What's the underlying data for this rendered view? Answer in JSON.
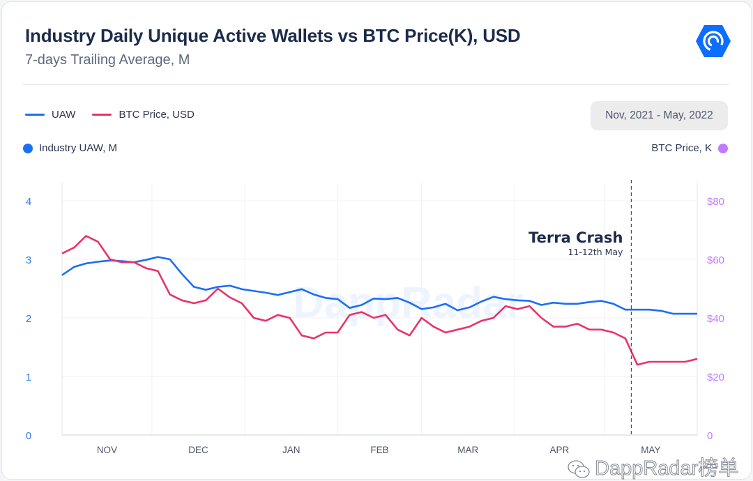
{
  "header": {
    "title": "Industry Daily Unique Active Wallets vs BTC Price(K), USD",
    "subtitle": "7-days Trailing Average, M",
    "logo_icon": "dappradar-hexagon-logo"
  },
  "legend": {
    "items": [
      {
        "label": "UAW",
        "color": "#1a6ff5"
      },
      {
        "label": "BTC Price, USD",
        "color": "#e8336b"
      }
    ]
  },
  "date_range": "Nov, 2021 - May, 2022",
  "axis_titles": {
    "left": "Industry UAW, M",
    "left_color": "#1a6ff5",
    "right": "BTC Price, K",
    "right_color": "#c27bff"
  },
  "watermarks": {
    "chart_background": "DappRadar",
    "footer": "DappRadar榜单"
  },
  "chart_data": {
    "type": "line",
    "title": "Industry Daily Unique Active Wallets vs BTC Price(K), USD",
    "subtitle": "7-days Trailing Average, M",
    "x_tick_labels": [
      "NOV",
      "DEC",
      "JAN",
      "FEB",
      "MAR",
      "APR",
      "MAY"
    ],
    "xlim": [
      "2021-11-01",
      "2022-06-01"
    ],
    "y_left": {
      "label": "Industry UAW, M",
      "ticks": [
        "0",
        "1",
        "2",
        "3",
        "4"
      ],
      "lim": [
        0,
        4
      ]
    },
    "y_right": {
      "label": "BTC Price, K",
      "ticks": [
        "0",
        "$20",
        "$40",
        "$60",
        "$80"
      ],
      "lim": [
        0,
        80
      ]
    },
    "grid": true,
    "legend_position": "top-left",
    "annotation": {
      "date": "2022-05-10",
      "title": "Terra Crash",
      "subtitle": "11-12th May",
      "style": "dashed vertical line"
    },
    "x": [
      "2021-11-01",
      "2021-11-05",
      "2021-11-09",
      "2021-11-13",
      "2021-11-17",
      "2021-11-21",
      "2021-11-25",
      "2021-11-29",
      "2021-12-03",
      "2021-12-07",
      "2021-12-11",
      "2021-12-15",
      "2021-12-19",
      "2021-12-23",
      "2021-12-27",
      "2021-12-31",
      "2022-01-04",
      "2022-01-08",
      "2022-01-12",
      "2022-01-16",
      "2022-01-20",
      "2022-01-24",
      "2022-01-28",
      "2022-02-01",
      "2022-02-05",
      "2022-02-09",
      "2022-02-13",
      "2022-02-17",
      "2022-02-21",
      "2022-02-25",
      "2022-03-01",
      "2022-03-05",
      "2022-03-09",
      "2022-03-13",
      "2022-03-17",
      "2022-03-21",
      "2022-03-25",
      "2022-03-29",
      "2022-04-02",
      "2022-04-06",
      "2022-04-10",
      "2022-04-14",
      "2022-04-18",
      "2022-04-22",
      "2022-04-26",
      "2022-04-30",
      "2022-05-04",
      "2022-05-08",
      "2022-05-12",
      "2022-05-16",
      "2022-05-20",
      "2022-05-24",
      "2022-05-28",
      "2022-06-01"
    ],
    "series": [
      {
        "name": "UAW",
        "axis": "left",
        "color": "#1a6ff5",
        "values": [
          2.73,
          2.87,
          2.93,
          2.96,
          2.98,
          2.97,
          2.95,
          2.99,
          3.04,
          3.0,
          2.75,
          2.53,
          2.48,
          2.53,
          2.55,
          2.49,
          2.46,
          2.43,
          2.39,
          2.44,
          2.49,
          2.4,
          2.34,
          2.32,
          2.17,
          2.22,
          2.33,
          2.32,
          2.34,
          2.26,
          2.15,
          2.18,
          2.24,
          2.13,
          2.18,
          2.28,
          2.36,
          2.32,
          2.3,
          2.29,
          2.22,
          2.26,
          2.24,
          2.24,
          2.27,
          2.29,
          2.24,
          2.14,
          2.14,
          2.14,
          2.12,
          2.07,
          2.07,
          2.07
        ]
      },
      {
        "name": "BTC Price, USD",
        "axis": "right",
        "color": "#e8336b",
        "values": [
          62,
          64,
          68,
          66,
          60,
          59,
          59,
          57,
          56,
          48,
          46,
          45,
          46,
          50,
          47,
          45,
          40,
          39,
          41,
          40,
          34,
          33,
          35,
          35,
          41,
          42,
          40,
          41,
          36,
          34,
          40,
          37,
          35,
          36,
          37,
          39,
          40,
          44,
          43,
          44,
          40,
          37,
          37,
          38,
          36,
          36,
          35,
          33,
          24,
          25,
          25,
          25,
          25,
          26
        ]
      }
    ]
  }
}
